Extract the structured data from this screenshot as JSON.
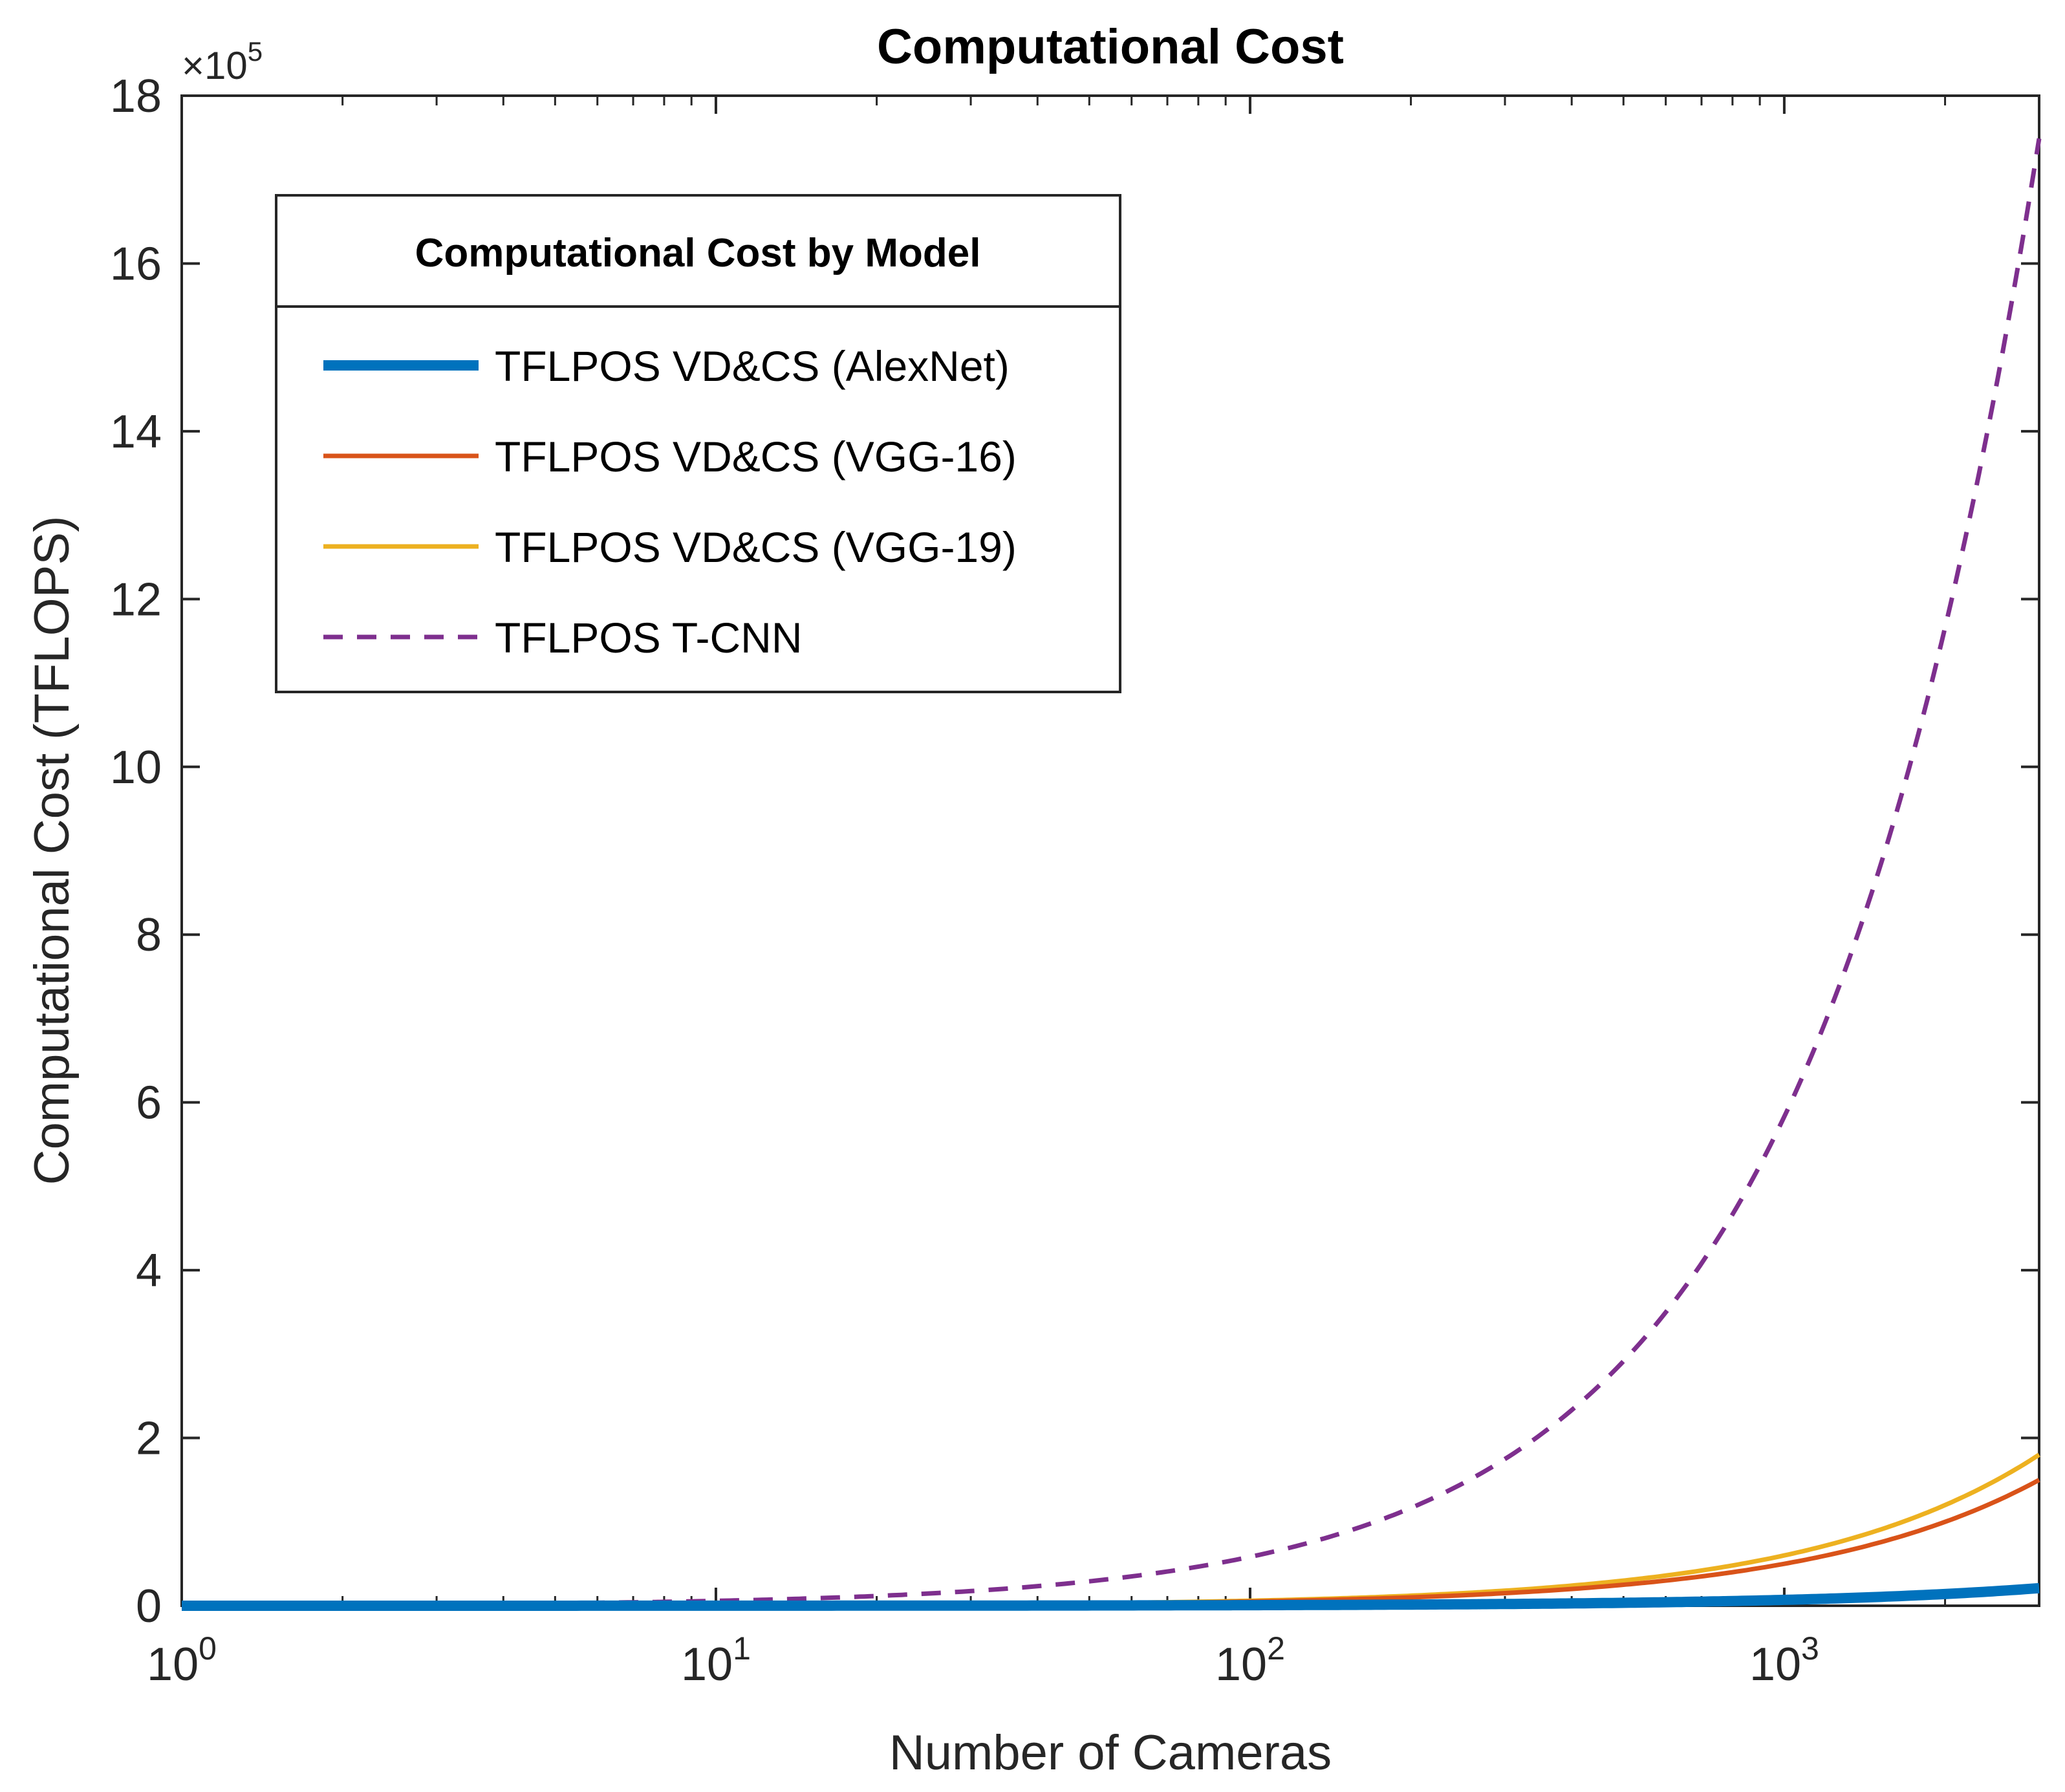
{
  "chart_data": {
    "type": "line",
    "title": "Computational Cost",
    "xlabel": "Number of Cameras",
    "ylabel": "Computational Cost (TFLOPS)",
    "x_scale": "log",
    "xlim": [
      1,
      3000
    ],
    "ylim": [
      0,
      1800000
    ],
    "y_exponent": {
      "base": "×10",
      "power": "5"
    },
    "x_ticks": [
      {
        "value": 1,
        "base": "10",
        "power": "0"
      },
      {
        "value": 10,
        "base": "10",
        "power": "1"
      },
      {
        "value": 100,
        "base": "10",
        "power": "2"
      },
      {
        "value": 1000,
        "base": "10",
        "power": "3"
      }
    ],
    "y_ticks": [
      {
        "value": 0,
        "label": "0"
      },
      {
        "value": 200000,
        "label": "2"
      },
      {
        "value": 400000,
        "label": "4"
      },
      {
        "value": 600000,
        "label": "6"
      },
      {
        "value": 800000,
        "label": "8"
      },
      {
        "value": 1000000,
        "label": "10"
      },
      {
        "value": 1200000,
        "label": "12"
      },
      {
        "value": 1400000,
        "label": "14"
      },
      {
        "value": 1600000,
        "label": "16"
      },
      {
        "value": 1800000,
        "label": "18"
      }
    ],
    "legend": {
      "title": "Computational Cost by Model",
      "placement": "top-left"
    },
    "series": [
      {
        "name": "TFLPOS VD&CS (AlexNet)",
        "color": "#0072BD",
        "style": "solid-thick",
        "per_camera_tflops": 7,
        "x": [
          1,
          10,
          100,
          300,
          1000,
          2000,
          3000
        ],
        "y": [
          7,
          70,
          700,
          2100,
          7000,
          14000,
          21000
        ]
      },
      {
        "name": "TFLPOS VD&CS (VGG-16)",
        "color": "#D95319",
        "style": "solid",
        "per_camera_tflops": 50,
        "x": [
          1,
          10,
          100,
          300,
          1000,
          2000,
          3000
        ],
        "y": [
          50,
          500,
          5000,
          15000,
          50000,
          100000,
          150000
        ]
      },
      {
        "name": "TFLPOS VD&CS (VGG-19)",
        "color": "#EDB120",
        "style": "solid",
        "per_camera_tflops": 60,
        "x": [
          1,
          10,
          100,
          300,
          1000,
          2000,
          3000
        ],
        "y": [
          60,
          600,
          6000,
          18000,
          60000,
          120000,
          180000
        ]
      },
      {
        "name": "TFLPOS T-CNN",
        "color": "#7E2F8E",
        "style": "dashed",
        "per_camera_tflops": 583,
        "x": [
          1,
          10,
          100,
          300,
          1000,
          2000,
          3000
        ],
        "y": [
          583,
          5830,
          58300,
          174900,
          583000,
          1166000,
          1749000
        ]
      }
    ]
  }
}
